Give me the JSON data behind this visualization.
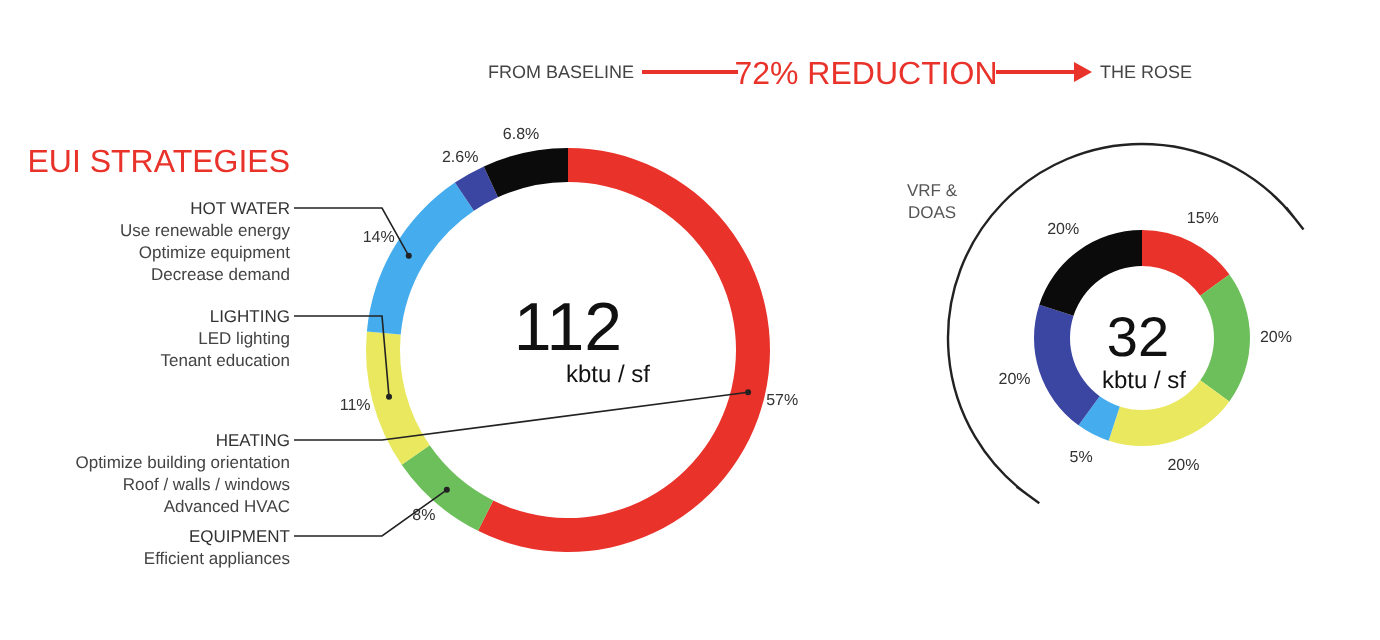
{
  "chart_data": [
    {
      "type": "donut",
      "title": "EUI STRATEGIES",
      "categories": [
        "HEATING",
        "EQUIPMENT",
        "LIGHTING",
        "HOT WATER",
        null,
        null
      ],
      "values": [
        57,
        8,
        11,
        14,
        2.6,
        6.8
      ],
      "value_labels": [
        "57%",
        "8%",
        "11%",
        "14%",
        "2.6%",
        "6.8%"
      ],
      "colors": [
        "#e8322a",
        "#6cbf5b",
        "#e9e85e",
        "#45acee",
        "#3b45a2",
        "#0b0b0b"
      ],
      "annotations": [
        "FROM BASELINE",
        "72% REDUCTION",
        "THE ROSE",
        "112",
        "kbtu / sf",
        "Optimize building orientation\nRoof / walls / windows\nAdvanced HVAC",
        "Efficient appliances",
        "LED lighting\nTenant education",
        "Use renewable energy\nOptimize equipment\nDecrease demand"
      ]
    },
    {
      "type": "donut",
      "categories": [
        null,
        null,
        null,
        null,
        null,
        null
      ],
      "values": [
        15,
        20,
        20,
        5,
        20,
        20
      ],
      "value_labels": [
        "15%",
        "20%",
        "20%",
        "5%",
        "20%",
        "20%"
      ],
      "colors": [
        "#e8322a",
        "#6cbf5b",
        "#e9e85e",
        "#45acee",
        "#3b45a2",
        "#0b0b0b"
      ],
      "annotations": [
        "32",
        "kbtu / sf",
        "VRF &\nDOAS"
      ]
    }
  ]
}
